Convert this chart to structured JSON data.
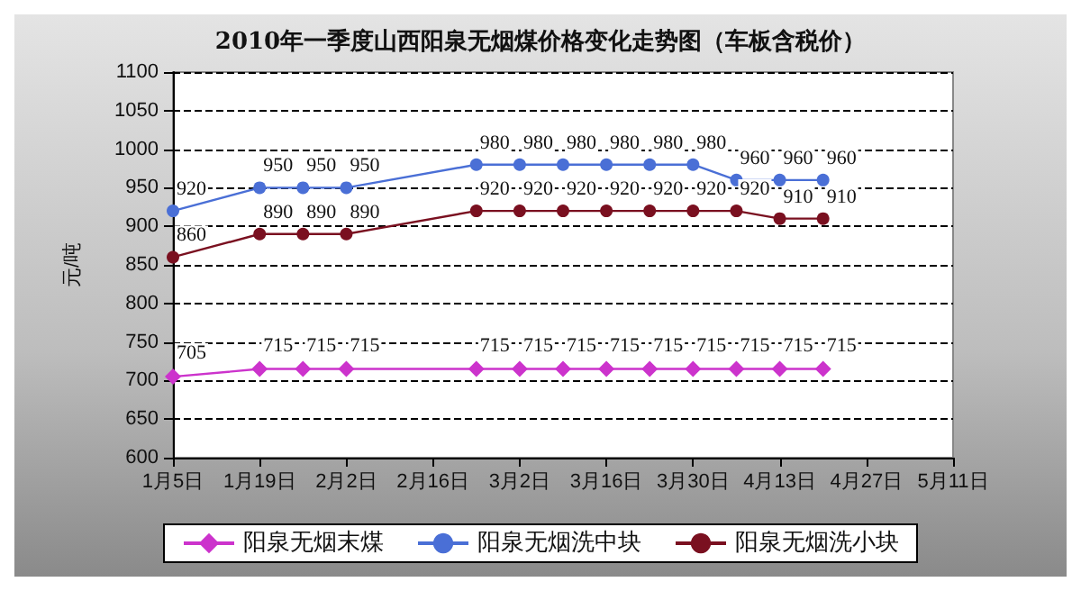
{
  "chart_data": {
    "type": "line",
    "title": "2010年一季度山西阳泉无烟煤价格变化走势图（车板含税价）",
    "ylabel": "元/吨",
    "x": [
      "2010-01-05",
      "2010-01-19",
      "2010-01-26",
      "2010-02-02",
      "2010-02-23",
      "2010-03-02",
      "2010-03-09",
      "2010-03-16",
      "2010-03-23",
      "2010-03-30",
      "2010-04-06",
      "2010-04-13",
      "2010-04-20"
    ],
    "series": [
      {
        "name": "阳泉无烟末煤",
        "color": "#cc33cc",
        "marker": "diamond",
        "values": [
          705,
          715,
          715,
          715,
          715,
          715,
          715,
          715,
          715,
          715,
          715,
          715,
          715
        ]
      },
      {
        "name": "阳泉无烟洗中块",
        "color": "#4a6fd6",
        "values": [
          920,
          950,
          950,
          950,
          980,
          980,
          980,
          980,
          980,
          980,
          960,
          960,
          960
        ]
      },
      {
        "name": "阳泉无烟洗小块",
        "color": "#7a1020",
        "values": [
          860,
          890,
          890,
          890,
          920,
          920,
          920,
          920,
          920,
          920,
          920,
          910,
          910
        ]
      }
    ],
    "xlim": [
      "2010-01-05",
      "2010-05-11"
    ],
    "xticks": [
      {
        "value": "2010-01-05",
        "label": "1月5日"
      },
      {
        "value": "2010-01-19",
        "label": "1月19日"
      },
      {
        "value": "2010-02-02",
        "label": "2月2日"
      },
      {
        "value": "2010-02-16",
        "label": "2月16日"
      },
      {
        "value": "2010-03-02",
        "label": "3月2日"
      },
      {
        "value": "2010-03-16",
        "label": "3月16日"
      },
      {
        "value": "2010-03-30",
        "label": "3月30日"
      },
      {
        "value": "2010-04-13",
        "label": "4月13日"
      },
      {
        "value": "2010-04-27",
        "label": "4月27日"
      },
      {
        "value": "2010-05-11",
        "label": "5月11日"
      }
    ],
    "ylim": [
      600,
      1100
    ],
    "yticks": [
      600,
      650,
      700,
      750,
      800,
      850,
      900,
      950,
      1000,
      1050,
      1100
    ],
    "grid": "y",
    "legend": "bottom",
    "marker": "circle",
    "line_style": "solid",
    "data_labels": true
  }
}
